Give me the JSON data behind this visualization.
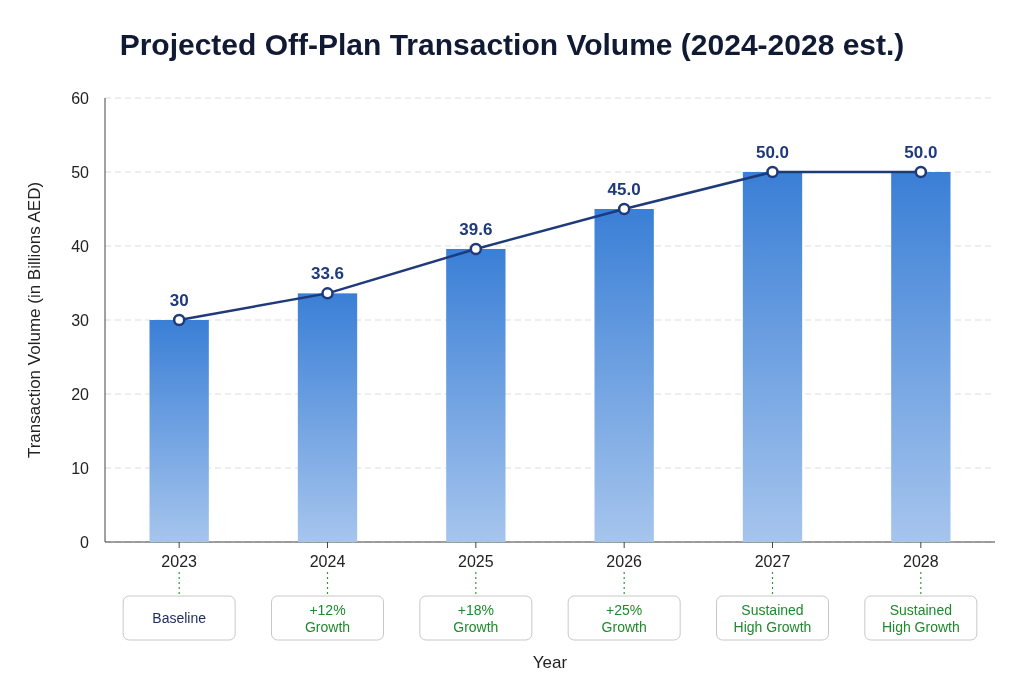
{
  "chart_data": {
    "type": "bar",
    "title": "Projected Off-Plan Transaction Volume (2024-2028 est.)",
    "xlabel": "Year",
    "ylabel": "Transaction Volume (in Billions AED)",
    "categories": [
      "2023",
      "2024",
      "2025",
      "2026",
      "2027",
      "2028"
    ],
    "series": [
      {
        "color": "#3a7fd6",
        "values": [
          30,
          33.6,
          39.6,
          45,
          50,
          50
        ]
      },
      {
        "type": "line",
        "color": "#1f3a7a",
        "marker": "circle",
        "values": [
          30,
          33.6,
          39.6,
          45,
          50,
          50
        ],
        "value_labels": [
          "30",
          "33.6",
          "39.6",
          "45.0",
          "50.0",
          "50.0"
        ]
      }
    ],
    "ylim": [
      0,
      60
    ],
    "yticks": [
      0,
      10,
      20,
      30,
      40,
      50,
      60
    ],
    "grid": "y",
    "annotations": [
      {
        "text": "Baseline",
        "x": "2023"
      },
      {
        "text": "+12% Growth",
        "x": "2024"
      },
      {
        "text": "+18% Growth",
        "x": "2025"
      },
      {
        "text": "+25% Growth",
        "x": "2026"
      },
      {
        "text": "Sustained High Growth",
        "x": "2027"
      },
      {
        "text": "Sustained High Growth",
        "x": "2028"
      }
    ]
  }
}
